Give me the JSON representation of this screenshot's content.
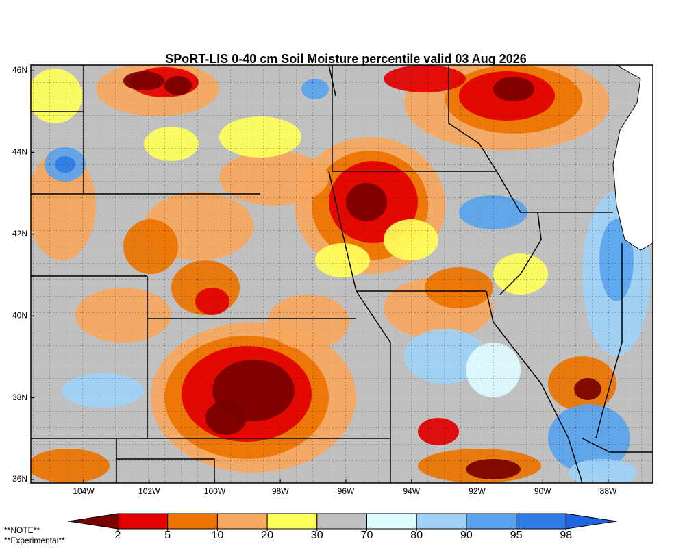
{
  "title": "SPoRT-LIS 0-40 cm Soil Moisture percentile valid 03 Aug 2026",
  "map": {
    "lat_labels": [
      "46N",
      "44N",
      "42N",
      "40N",
      "38N",
      "36N"
    ],
    "lon_labels": [
      "104W",
      "102W",
      "100W",
      "98W",
      "96W",
      "94W",
      "92W",
      "90W",
      "88W"
    ]
  },
  "colorbar": {
    "ticks": [
      2,
      5,
      10,
      20,
      30,
      70,
      80,
      90,
      95,
      98
    ],
    "colors": [
      "#7a0000",
      "#e20000",
      "#ec7400",
      "#f9a860",
      "#ffff5a",
      "#c0c0c0",
      "#ddfcff",
      "#a0d2f8",
      "#5aa4ee",
      "#2e7de6",
      "#1e64e0"
    ]
  },
  "notes": [
    "**NOTE**",
    "**Experimental**"
  ]
}
